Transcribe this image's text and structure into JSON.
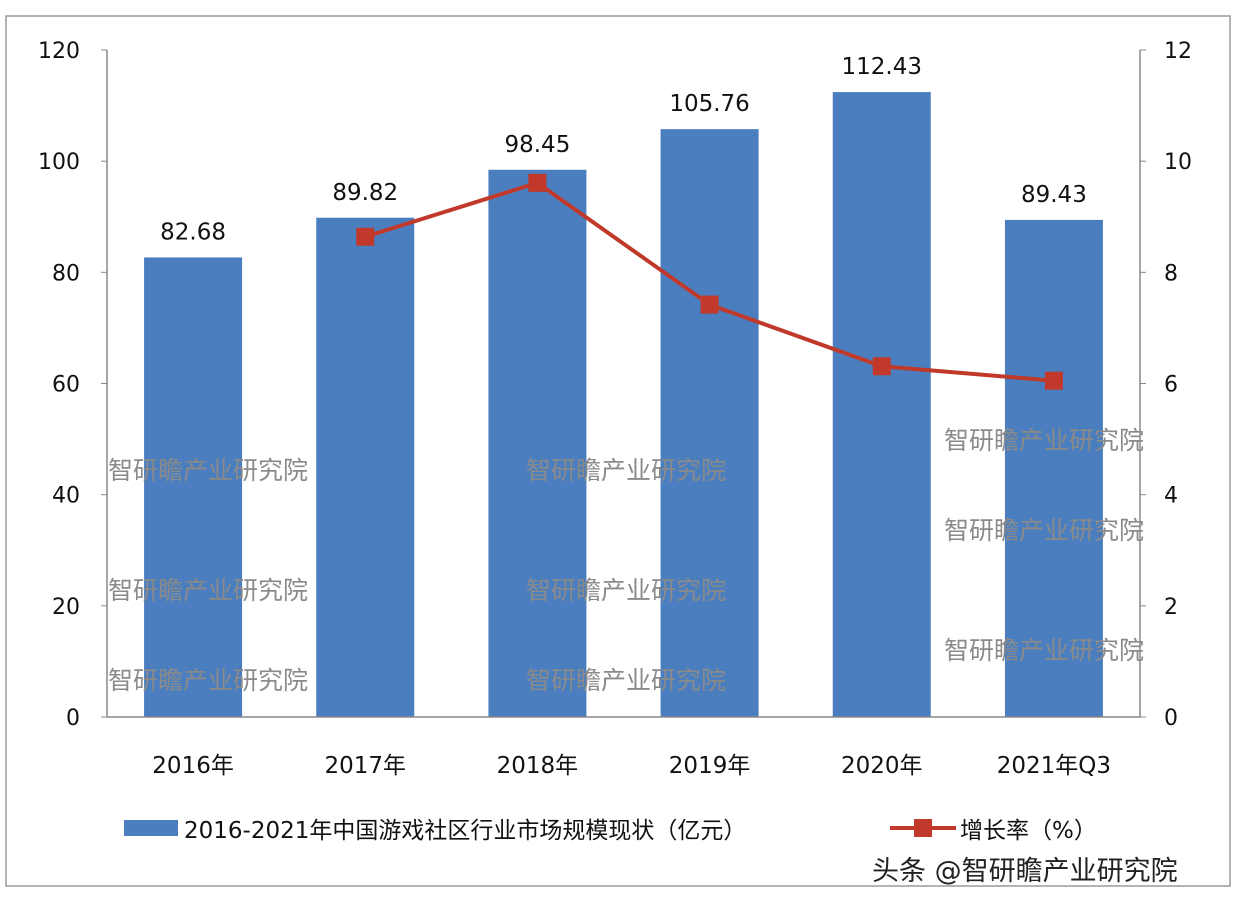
{
  "chart_data": {
    "type": "bar+line",
    "categories": [
      "2016年",
      "2017年",
      "2018年",
      "2019年",
      "2020年",
      "2021年Q3"
    ],
    "series": [
      {
        "name": "2016-2021年中国游戏社区行业市场规模现状（亿元）",
        "type": "bar",
        "axis": "left",
        "color": "#4a7ebf",
        "values": [
          82.68,
          89.82,
          98.45,
          105.76,
          112.43,
          89.43
        ],
        "labels": [
          "82.68",
          "89.82",
          "98.45",
          "105.76",
          "112.43",
          "89.43"
        ]
      },
      {
        "name": "增长率（%）",
        "type": "line",
        "axis": "right",
        "color": "#c0392b",
        "values": [
          null,
          8.64,
          9.61,
          7.42,
          6.31,
          6.05
        ]
      }
    ],
    "y_left": {
      "range": [
        0,
        120
      ],
      "ticks": [
        "0",
        "20",
        "40",
        "60",
        "80",
        "100",
        "120"
      ]
    },
    "y_right": {
      "range": [
        0,
        12
      ],
      "ticks": [
        "0",
        "2",
        "4",
        "6",
        "8",
        "10",
        "12"
      ]
    },
    "grid": false,
    "legend_position": "bottom"
  },
  "watermark": "智研瞻产业研究院",
  "source_credit": "头条 @智研瞻产业研究院"
}
